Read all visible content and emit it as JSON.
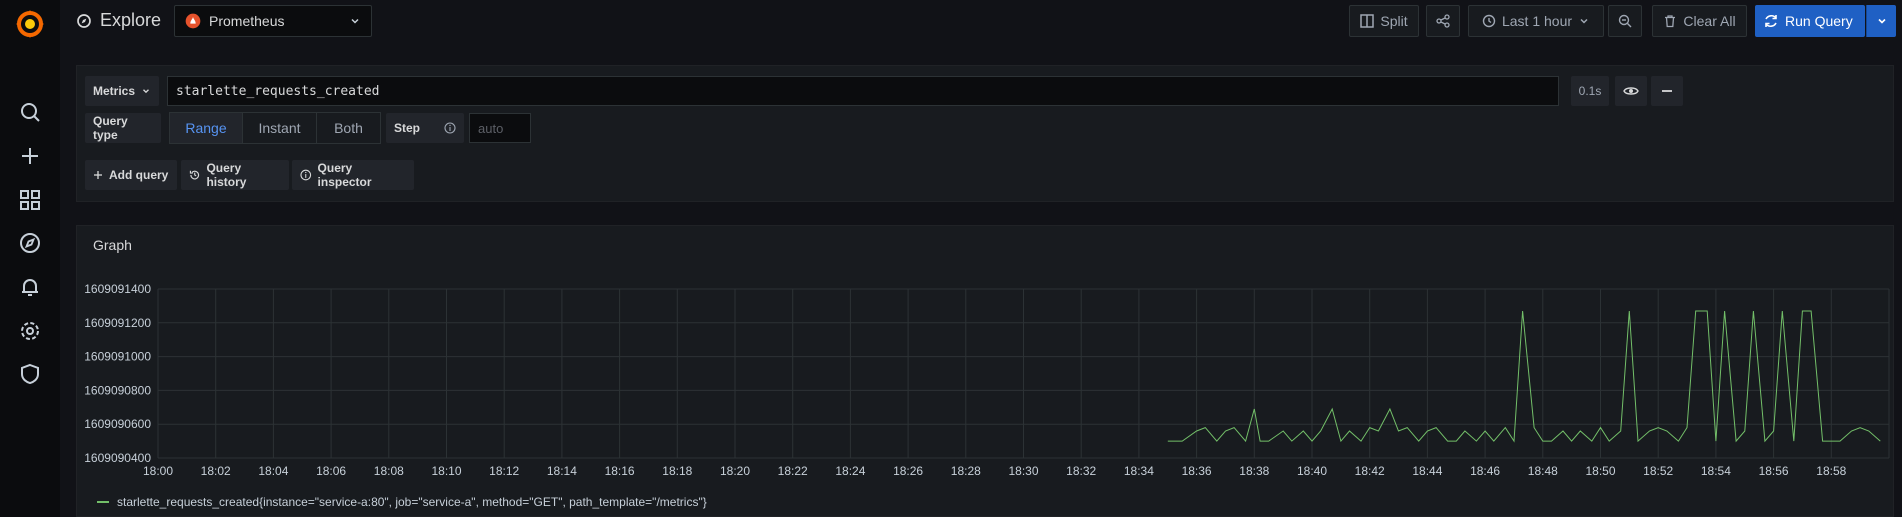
{
  "topbar": {
    "title": "Explore",
    "datasource": "Prometheus",
    "split_label": "Split",
    "time_range": "Last 1 hour",
    "clear_label": "Clear All",
    "run_label": "Run Query"
  },
  "sidebar": {
    "items": [
      "search-icon",
      "plus-icon",
      "dashboards-icon",
      "explore-icon",
      "alerting-icon",
      "settings-icon",
      "shield-icon"
    ]
  },
  "query": {
    "metrics_label": "Metrics",
    "expr": "starlette_requests_created",
    "duration": "0.1s",
    "query_type_label": "Query type",
    "types": [
      "Range",
      "Instant",
      "Both"
    ],
    "active_type": "Range",
    "step_label": "Step",
    "step_placeholder": "auto",
    "add_query": "Add query",
    "history": "Query history",
    "inspector": "Query inspector"
  },
  "graph": {
    "title": "Graph",
    "legend": "starlette_requests_created{instance=\"service-a:80\", job=\"service-a\", method=\"GET\", path_template=\"/metrics\"}"
  },
  "chart_data": {
    "type": "line",
    "y_ticks": [
      "1609091400",
      "1609091200",
      "1609091000",
      "1609090800",
      "1609090600",
      "1609090400"
    ],
    "ylim": [
      1609090400,
      1609091400
    ],
    "x_ticks": [
      "18:00",
      "18:02",
      "18:04",
      "18:06",
      "18:08",
      "18:10",
      "18:12",
      "18:14",
      "18:16",
      "18:18",
      "18:20",
      "18:22",
      "18:24",
      "18:26",
      "18:28",
      "18:30",
      "18:32",
      "18:34",
      "18:36",
      "18:38",
      "18:40",
      "18:42",
      "18:44",
      "18:46",
      "18:48",
      "18:50",
      "18:52",
      "18:54",
      "18:56",
      "18:58"
    ],
    "xlim": [
      "18:00",
      "19:00"
    ],
    "grid": true,
    "legend_position": "bottom-left",
    "color": "#73bf69",
    "series": [
      {
        "name": "starlette_requests_created{instance=\"service-a:80\", job=\"service-a\", method=\"GET\", path_template=\"/metrics\"}",
        "x_minutes": [
          35.0,
          35.5,
          36.0,
          36.3,
          36.7,
          37.0,
          37.3,
          37.7,
          38.0,
          38.2,
          38.5,
          39.0,
          39.3,
          39.7,
          40.0,
          40.3,
          40.7,
          41.0,
          41.3,
          41.7,
          42.0,
          42.3,
          42.7,
          43.0,
          43.3,
          43.7,
          44.0,
          44.3,
          44.7,
          45.0,
          45.3,
          45.7,
          46.0,
          46.3,
          46.7,
          47.0,
          47.3,
          47.7,
          48.0,
          48.3,
          48.7,
          49.0,
          49.3,
          49.7,
          50.0,
          50.3,
          50.7,
          51.0,
          51.3,
          51.7,
          52.0,
          52.3,
          52.7,
          53.0,
          53.3,
          53.7,
          54.0,
          54.3,
          54.7,
          55.0,
          55.3,
          55.7,
          56.0,
          56.3,
          56.7,
          57.0,
          57.3,
          57.7,
          58.0,
          58.3,
          58.7,
          59.0,
          59.3,
          59.7
        ],
        "values": [
          1609090500,
          1609090500,
          1609090560,
          1609090580,
          1609090500,
          1609090560,
          1609090580,
          1609090500,
          1609090690,
          1609090500,
          1609090500,
          1609090560,
          1609090500,
          1609090560,
          1609090500,
          1609090560,
          1609090690,
          1609090500,
          1609090560,
          1609090500,
          1609090580,
          1609090560,
          1609090690,
          1609090560,
          1609090580,
          1609090500,
          1609090560,
          1609090580,
          1609090500,
          1609090500,
          1609090560,
          1609090500,
          1609090560,
          1609090500,
          1609090580,
          1609090500,
          1609091270,
          1609090580,
          1609090500,
          1609090500,
          1609090560,
          1609090500,
          1609090560,
          1609090500,
          1609090580,
          1609090500,
          1609090560,
          1609091270,
          1609090500,
          1609090560,
          1609090580,
          1609090560,
          1609090500,
          1609090580,
          1609091270,
          1609091270,
          1609090500,
          1609091270,
          1609090500,
          1609090560,
          1609091270,
          1609090500,
          1609090560,
          1609091270,
          1609090500,
          1609091270,
          1609091270,
          1609090500,
          1609090500,
          1609090500,
          1609090560,
          1609090580,
          1609090560,
          1609090500
        ]
      }
    ]
  }
}
